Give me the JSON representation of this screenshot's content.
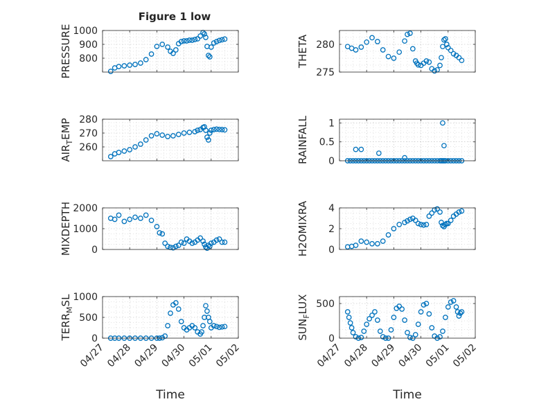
{
  "figure": {
    "title": "Figure 1 low"
  },
  "colors": {
    "marker": "#0072bd",
    "axis": "#262626",
    "grid": "#b8b8b8"
  },
  "chart_data": [
    {
      "type": "scatter",
      "ylabel": "PRESSURE",
      "ylabel_sub": "",
      "ylim": [
        700,
        1000
      ],
      "yticks": [
        800,
        900,
        1000
      ],
      "xlim": [
        0,
        5
      ],
      "x": [
        0.3,
        0.45,
        0.6,
        0.8,
        1.0,
        1.2,
        1.4,
        1.6,
        1.8,
        2.0,
        2.2,
        2.4,
        2.5,
        2.6,
        2.7,
        2.8,
        2.9,
        3.0,
        3.1,
        3.2,
        3.3,
        3.4,
        3.5,
        3.6,
        3.7,
        3.75,
        3.8,
        3.85,
        3.9,
        3.95,
        4.0,
        4.1,
        4.2,
        4.3,
        4.4,
        4.5
      ],
      "y": [
        705,
        730,
        740,
        745,
        750,
        755,
        765,
        790,
        830,
        885,
        900,
        880,
        850,
        835,
        860,
        905,
        920,
        925,
        925,
        930,
        930,
        935,
        940,
        960,
        985,
        975,
        950,
        885,
        820,
        810,
        880,
        910,
        920,
        928,
        933,
        938
      ]
    },
    {
      "type": "scatter",
      "ylabel": "THETA",
      "ylabel_sub": "",
      "ylim": [
        275,
        282.5
      ],
      "yticks": [
        275,
        280
      ],
      "xlim": [
        0,
        5
      ],
      "x": [
        0.3,
        0.45,
        0.6,
        0.8,
        1.0,
        1.2,
        1.4,
        1.6,
        1.8,
        2.0,
        2.2,
        2.4,
        2.5,
        2.6,
        2.7,
        2.8,
        2.85,
        2.9,
        3.0,
        3.1,
        3.2,
        3.3,
        3.4,
        3.5,
        3.6,
        3.7,
        3.75,
        3.8,
        3.85,
        3.9,
        3.95,
        4.0,
        4.1,
        4.2,
        4.3,
        4.4,
        4.5
      ],
      "y": [
        279.6,
        279.3,
        279.0,
        279.5,
        280.4,
        281.2,
        280.5,
        279.0,
        277.8,
        277.5,
        278.6,
        280.6,
        281.8,
        282.0,
        279.2,
        277.0,
        276.6,
        276.3,
        276.2,
        276.6,
        277.0,
        276.8,
        275.6,
        275.2,
        275.4,
        276.2,
        277.6,
        279.6,
        280.8,
        281.0,
        280.0,
        279.4,
        278.9,
        278.3,
        278.0,
        277.6,
        277.1
      ]
    },
    {
      "type": "scatter",
      "ylabel": "AIR",
      "ylabel_sub": "T",
      "ylabel_post": "EMP",
      "ylim": [
        250,
        280
      ],
      "yticks": [
        260,
        270,
        280
      ],
      "xlim": [
        0,
        5
      ],
      "x": [
        0.3,
        0.45,
        0.6,
        0.8,
        1.0,
        1.2,
        1.4,
        1.6,
        1.8,
        2.0,
        2.2,
        2.4,
        2.6,
        2.8,
        3.0,
        3.2,
        3.4,
        3.5,
        3.6,
        3.7,
        3.75,
        3.8,
        3.85,
        3.9,
        3.95,
        4.0,
        4.1,
        4.2,
        4.3,
        4.4,
        4.5
      ],
      "y": [
        253,
        255,
        256,
        257,
        258,
        260,
        262,
        265,
        268,
        269.5,
        268.5,
        267.5,
        268,
        269,
        270,
        270.5,
        271,
        272,
        272.5,
        274,
        274.5,
        272,
        267,
        265,
        270,
        272,
        272.5,
        272.8,
        272.6,
        272.5,
        272.3
      ]
    },
    {
      "type": "scatter",
      "ylabel": "RAINFALL",
      "ylabel_sub": "",
      "ylim": [
        0,
        1.1
      ],
      "yticks": [
        0,
        0.5,
        1
      ],
      "xlim": [
        0,
        5
      ],
      "x": [
        0.3,
        0.4,
        0.5,
        0.6,
        0.7,
        0.8,
        0.9,
        1.0,
        1.1,
        1.2,
        1.3,
        1.4,
        1.5,
        1.6,
        1.7,
        1.8,
        1.9,
        2.0,
        2.1,
        2.2,
        2.3,
        2.4,
        2.5,
        2.6,
        2.7,
        2.8,
        2.9,
        3.0,
        3.1,
        3.2,
        3.3,
        3.4,
        3.5,
        3.6,
        3.7,
        3.75,
        3.8,
        3.85,
        3.9,
        4.0,
        4.1,
        4.2,
        4.3,
        4.4,
        4.5,
        0.6,
        0.8,
        1.45,
        2.4,
        3.8,
        3.85
      ],
      "y": [
        0,
        0,
        0,
        0,
        0,
        0,
        0,
        0,
        0,
        0,
        0,
        0,
        0,
        0,
        0,
        0,
        0,
        0,
        0,
        0,
        0,
        0,
        0,
        0,
        0,
        0,
        0,
        0,
        0,
        0,
        0,
        0,
        0,
        0,
        0,
        0,
        0,
        0,
        0,
        0,
        0,
        0,
        0,
        0,
        0,
        0.3,
        0.3,
        0.2,
        0.08,
        1.0,
        0.4
      ]
    },
    {
      "type": "scatter",
      "ylabel": "MIXDEPTH",
      "ylabel_sub": "",
      "ylim": [
        0,
        2000
      ],
      "yticks": [
        0,
        1000,
        2000
      ],
      "xlim": [
        0,
        5
      ],
      "x": [
        0.3,
        0.45,
        0.6,
        0.8,
        1.0,
        1.2,
        1.4,
        1.6,
        1.8,
        2.0,
        2.1,
        2.2,
        2.3,
        2.4,
        2.5,
        2.6,
        2.7,
        2.8,
        2.9,
        3.0,
        3.1,
        3.2,
        3.3,
        3.4,
        3.5,
        3.6,
        3.7,
        3.75,
        3.8,
        3.85,
        3.9,
        3.95,
        4.0,
        4.1,
        4.2,
        4.3,
        4.4,
        4.5
      ],
      "y": [
        1500,
        1450,
        1650,
        1350,
        1450,
        1550,
        1500,
        1650,
        1400,
        1100,
        800,
        750,
        300,
        150,
        100,
        80,
        150,
        200,
        350,
        300,
        500,
        400,
        300,
        350,
        450,
        550,
        400,
        250,
        120,
        60,
        200,
        150,
        300,
        350,
        450,
        500,
        350,
        350
      ]
    },
    {
      "type": "scatter",
      "ylabel": "H2OMIXRA",
      "ylabel_sub": "",
      "ylim": [
        0,
        4
      ],
      "yticks": [
        0,
        2,
        4
      ],
      "xlim": [
        0,
        5
      ],
      "x": [
        0.3,
        0.45,
        0.6,
        0.8,
        1.0,
        1.2,
        1.4,
        1.6,
        1.8,
        2.0,
        2.2,
        2.4,
        2.5,
        2.6,
        2.7,
        2.8,
        2.9,
        3.0,
        3.1,
        3.2,
        3.3,
        3.4,
        3.5,
        3.6,
        3.7,
        3.75,
        3.8,
        3.85,
        3.9,
        3.95,
        4.0,
        4.1,
        4.2,
        4.3,
        4.4,
        4.5
      ],
      "y": [
        0.25,
        0.3,
        0.4,
        0.8,
        0.7,
        0.55,
        0.55,
        0.8,
        1.4,
        2.0,
        2.4,
        2.6,
        2.75,
        2.9,
        3.0,
        2.8,
        2.5,
        2.4,
        2.35,
        2.4,
        3.2,
        3.5,
        3.8,
        3.9,
        3.6,
        2.6,
        2.3,
        2.2,
        2.4,
        2.5,
        2.5,
        2.8,
        3.2,
        3.4,
        3.6,
        3.7
      ]
    },
    {
      "type": "scatter",
      "ylabel": "TERR",
      "ylabel_sub": "M",
      "ylabel_post": "SL",
      "ylim": [
        0,
        1000
      ],
      "yticks": [
        0,
        500,
        1000
      ],
      "xlim": [
        0,
        5
      ],
      "x": [
        0.3,
        0.45,
        0.6,
        0.8,
        1.0,
        1.2,
        1.4,
        1.6,
        1.8,
        2.0,
        2.1,
        2.2,
        2.3,
        2.4,
        2.5,
        2.6,
        2.7,
        2.8,
        2.9,
        3.0,
        3.1,
        3.2,
        3.3,
        3.4,
        3.5,
        3.6,
        3.65,
        3.7,
        3.75,
        3.8,
        3.85,
        3.9,
        3.95,
        4.0,
        4.1,
        4.2,
        4.3,
        4.4,
        4.5
      ],
      "y": [
        0,
        0,
        0,
        0,
        0,
        0,
        0,
        0,
        0,
        0,
        0,
        10,
        50,
        300,
        600,
        800,
        850,
        700,
        400,
        250,
        200,
        250,
        300,
        250,
        150,
        100,
        150,
        300,
        500,
        780,
        650,
        500,
        400,
        250,
        300,
        280,
        260,
        270,
        280
      ]
    },
    {
      "type": "scatter",
      "ylabel": "SUN",
      "ylabel_sub": "F",
      "ylabel_post": "LUX",
      "ylim": [
        0,
        600
      ],
      "yticks": [
        0,
        500
      ],
      "xlim": [
        0,
        5
      ],
      "x": [
        0.3,
        0.35,
        0.4,
        0.45,
        0.5,
        0.6,
        0.7,
        0.8,
        0.9,
        1.0,
        1.1,
        1.2,
        1.3,
        1.4,
        1.5,
        1.6,
        1.7,
        1.8,
        1.9,
        2.0,
        2.1,
        2.2,
        2.3,
        2.4,
        2.5,
        2.6,
        2.7,
        2.8,
        2.9,
        3.0,
        3.1,
        3.2,
        3.3,
        3.4,
        3.5,
        3.6,
        3.7,
        3.8,
        3.9,
        4.0,
        4.1,
        4.2,
        4.3,
        4.35,
        4.4,
        4.45,
        4.5
      ],
      "y": [
        380,
        300,
        220,
        150,
        80,
        20,
        0,
        10,
        100,
        200,
        280,
        330,
        380,
        260,
        100,
        20,
        0,
        0,
        120,
        300,
        430,
        460,
        420,
        260,
        80,
        10,
        0,
        50,
        200,
        380,
        480,
        500,
        350,
        150,
        30,
        0,
        20,
        100,
        300,
        450,
        520,
        540,
        450,
        380,
        320,
        360,
        380
      ]
    }
  ],
  "xaxis": {
    "label": "Time",
    "ticks": [
      {
        "value": 0,
        "label": "04/27"
      },
      {
        "value": 1,
        "label": "04/28"
      },
      {
        "value": 2,
        "label": "04/29"
      },
      {
        "value": 3,
        "label": "04/30"
      },
      {
        "value": 4,
        "label": "05/01"
      },
      {
        "value": 5,
        "label": "05/02"
      }
    ]
  }
}
